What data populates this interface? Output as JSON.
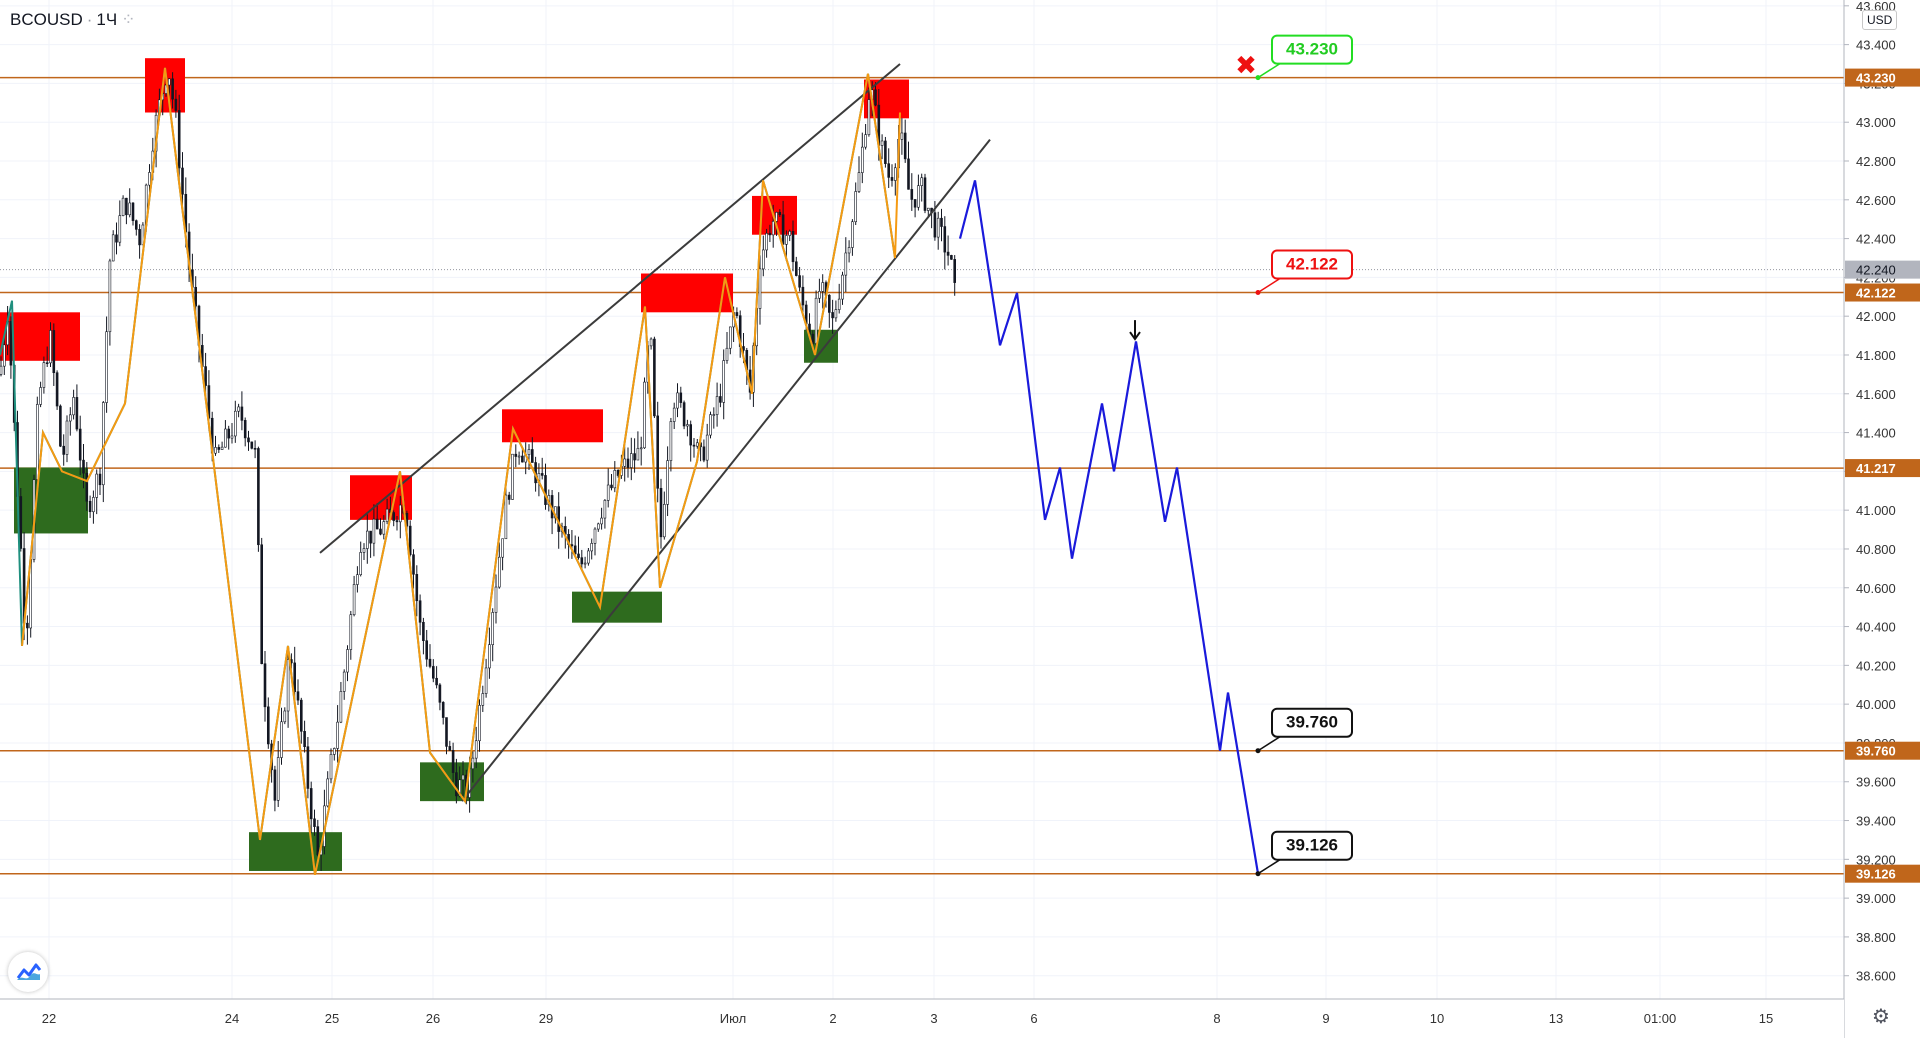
{
  "header": {
    "symbol": "BCOUSD",
    "interval": "1Ч",
    "currency": "USD"
  },
  "colors": {
    "level_line": "#c0661b",
    "level_tag": "#c0661b",
    "wedge": "#3b3b3b",
    "zigzag_orange": "#f59a12",
    "zigzag_teal": "#1f8f7e",
    "forecast": "#1a1adb",
    "supply_zone": "#ff0000",
    "demand_zone": "#2e6b1e",
    "candle": "#131722",
    "grid": "#f0f3fa",
    "axis_text": "#333333"
  },
  "chart_data": {
    "type": "candlestick",
    "x_labels": [
      "22",
      "24",
      "25",
      "26",
      "29",
      "Июл",
      "2",
      "3",
      "6",
      "8",
      "9",
      "10",
      "13",
      "01:00",
      "15"
    ],
    "y_ticks": [
      38.6,
      38.8,
      39.0,
      39.2,
      39.4,
      39.6,
      39.8,
      40.0,
      40.2,
      40.4,
      40.6,
      40.8,
      41.0,
      41.2,
      41.4,
      41.6,
      41.8,
      42.0,
      42.2,
      42.4,
      42.6,
      42.8,
      43.0,
      43.2,
      43.4,
      43.6
    ],
    "y_tick_labels": [
      "38.600",
      "38.800",
      "39.000",
      "39.200",
      "39.400",
      "39.600",
      "39.800",
      "40.000",
      "40.200",
      "40.400",
      "40.600",
      "40.800",
      "41.000",
      "41.200",
      "41.400",
      "41.600",
      "41.800",
      "42.000",
      "42.200",
      "42.400",
      "42.600",
      "42.800",
      "43.000",
      "43.200",
      "43.400",
      "43.600"
    ],
    "ylim": [
      38.48,
      43.63
    ],
    "current_price": "42.240",
    "levels": [
      {
        "label": "43.230",
        "value": 43.23
      },
      {
        "label": "42.122",
        "value": 42.122
      },
      {
        "label": "41.217",
        "value": 41.217
      },
      {
        "label": "39.760",
        "value": 39.76
      },
      {
        "label": "39.126",
        "value": 39.126
      }
    ],
    "callouts": [
      {
        "text": "43.230",
        "value": 43.23,
        "style": "green"
      },
      {
        "text": "42.122",
        "value": 42.122,
        "style": "red"
      },
      {
        "text": "39.760",
        "value": 39.76,
        "style": "black"
      },
      {
        "text": "39.126",
        "value": 39.126,
        "style": "black"
      }
    ],
    "path_anchors": [
      [
        0,
        41.7
      ],
      [
        8,
        42.05
      ],
      [
        16,
        41.25
      ],
      [
        26,
        40.3
      ],
      [
        38,
        41.55
      ],
      [
        50,
        41.9
      ],
      [
        62,
        41.25
      ],
      [
        74,
        41.6
      ],
      [
        86,
        41.0
      ],
      [
        100,
        41.2
      ],
      [
        110,
        42.3
      ],
      [
        125,
        42.6
      ],
      [
        140,
        42.4
      ],
      [
        152,
        42.9
      ],
      [
        160,
        43.1
      ],
      [
        168,
        43.3
      ],
      [
        176,
        43.0
      ],
      [
        190,
        42.2
      ],
      [
        215,
        41.25
      ],
      [
        240,
        41.5
      ],
      [
        255,
        41.3
      ],
      [
        262,
        40.2
      ],
      [
        275,
        39.5
      ],
      [
        290,
        40.3
      ],
      [
        305,
        39.7
      ],
      [
        318,
        39.2
      ],
      [
        330,
        39.65
      ],
      [
        345,
        40.2
      ],
      [
        360,
        40.85
      ],
      [
        380,
        40.9
      ],
      [
        405,
        41.05
      ],
      [
        420,
        40.4
      ],
      [
        435,
        40.1
      ],
      [
        455,
        39.6
      ],
      [
        468,
        39.55
      ],
      [
        480,
        40.0
      ],
      [
        495,
        40.6
      ],
      [
        505,
        41.0
      ],
      [
        517,
        41.35
      ],
      [
        535,
        41.2
      ],
      [
        560,
        40.9
      ],
      [
        580,
        40.7
      ],
      [
        600,
        41.0
      ],
      [
        620,
        41.2
      ],
      [
        640,
        41.3
      ],
      [
        650,
        41.95
      ],
      [
        660,
        40.8
      ],
      [
        672,
        41.6
      ],
      [
        688,
        41.45
      ],
      [
        700,
        41.25
      ],
      [
        720,
        41.6
      ],
      [
        735,
        42.05
      ],
      [
        750,
        41.6
      ],
      [
        760,
        42.3
      ],
      [
        772,
        42.5
      ],
      [
        790,
        42.4
      ],
      [
        800,
        42.1
      ],
      [
        812,
        41.9
      ],
      [
        820,
        42.15
      ],
      [
        832,
        41.95
      ],
      [
        845,
        42.3
      ],
      [
        860,
        42.75
      ],
      [
        870,
        43.2
      ],
      [
        880,
        42.9
      ],
      [
        890,
        42.7
      ],
      [
        900,
        42.95
      ],
      [
        910,
        42.6
      ],
      [
        922,
        42.65
      ],
      [
        932,
        42.5
      ],
      [
        942,
        42.4
      ],
      [
        950,
        42.3
      ],
      [
        955,
        42.1
      ]
    ],
    "path_noise_seed": 7,
    "supply_zones": [
      {
        "time": [
          0,
          80
        ],
        "price": [
          41.77,
          42.02
        ]
      },
      {
        "time": [
          145,
          185
        ],
        "price": [
          43.05,
          43.33
        ]
      },
      {
        "time": [
          350,
          412
        ],
        "price": [
          40.95,
          41.18
        ]
      },
      {
        "time": [
          502,
          603
        ],
        "price": [
          41.35,
          41.52
        ]
      },
      {
        "time": [
          641,
          733
        ],
        "price": [
          42.02,
          42.22
        ]
      },
      {
        "time": [
          752,
          797
        ],
        "price": [
          42.42,
          42.62
        ]
      },
      {
        "time": [
          864,
          909
        ],
        "price": [
          43.02,
          43.22
        ]
      }
    ],
    "demand_zones": [
      {
        "time": [
          14,
          88
        ],
        "price": [
          40.88,
          41.22
        ]
      },
      {
        "time": [
          249,
          342
        ],
        "price": [
          39.14,
          39.34
        ]
      },
      {
        "time": [
          420,
          484
        ],
        "price": [
          39.5,
          39.7
        ]
      },
      {
        "time": [
          572,
          662
        ],
        "price": [
          40.42,
          40.58
        ]
      },
      {
        "time": [
          804,
          838
        ],
        "price": [
          41.76,
          41.93
        ]
      }
    ],
    "wedge_lines": [
      {
        "from": [
          320,
          40.78
        ],
        "to": [
          900,
          43.3
        ]
      },
      {
        "from": [
          462,
          39.5
        ],
        "to": [
          990,
          42.91
        ]
      }
    ],
    "zigzag_orange": [
      [
        22,
        40.3
      ],
      [
        43,
        41.4
      ],
      [
        62,
        41.2
      ],
      [
        87,
        41.15
      ],
      [
        125,
        41.55
      ],
      [
        165,
        43.28
      ],
      [
        260,
        39.3
      ],
      [
        288,
        40.3
      ],
      [
        315,
        39.12
      ],
      [
        400,
        41.2
      ],
      [
        430,
        39.75
      ],
      [
        465,
        39.5
      ],
      [
        513,
        41.42
      ],
      [
        600,
        40.5
      ],
      [
        645,
        42.05
      ],
      [
        660,
        40.6
      ],
      [
        697,
        41.25
      ],
      [
        725,
        42.2
      ],
      [
        752,
        41.6
      ],
      [
        763,
        42.7
      ],
      [
        815,
        41.8
      ],
      [
        868,
        43.25
      ],
      [
        895,
        42.3
      ],
      [
        900,
        43.05
      ]
    ],
    "zigzag_teal": [
      [
        0,
        41.8
      ],
      [
        12,
        42.08
      ],
      [
        22,
        40.3
      ],
      [
        43,
        41.4
      ],
      [
        62,
        41.2
      ],
      [
        87,
        41.15
      ],
      [
        125,
        41.55
      ],
      [
        165,
        43.28
      ],
      [
        260,
        39.3
      ],
      [
        288,
        40.3
      ],
      [
        315,
        39.12
      ],
      [
        400,
        41.2
      ],
      [
        430,
        39.75
      ],
      [
        465,
        39.5
      ],
      [
        513,
        41.42
      ],
      [
        600,
        40.5
      ],
      [
        645,
        42.05
      ],
      [
        660,
        40.6
      ],
      [
        697,
        41.25
      ],
      [
        725,
        42.2
      ],
      [
        752,
        41.6
      ],
      [
        763,
        42.7
      ],
      [
        815,
        41.8
      ],
      [
        868,
        43.25
      ],
      [
        895,
        42.3
      ]
    ],
    "forecast_path": [
      [
        960,
        42.4
      ],
      [
        975,
        42.7
      ],
      [
        1000,
        41.85
      ],
      [
        1017,
        42.12
      ],
      [
        1045,
        40.95
      ],
      [
        1060,
        41.22
      ],
      [
        1072,
        40.75
      ],
      [
        1102,
        41.55
      ],
      [
        1114,
        41.2
      ],
      [
        1136,
        41.87
      ],
      [
        1165,
        40.94
      ],
      [
        1177,
        41.22
      ],
      [
        1220,
        39.76
      ],
      [
        1228,
        40.06
      ],
      [
        1258,
        39.126
      ]
    ],
    "invalidation_marker": {
      "symbol": "✖",
      "time": 1246,
      "price": 43.3
    },
    "down_arrow_marker": {
      "symbol": "🠗",
      "time": 1135,
      "price": 41.98
    }
  }
}
